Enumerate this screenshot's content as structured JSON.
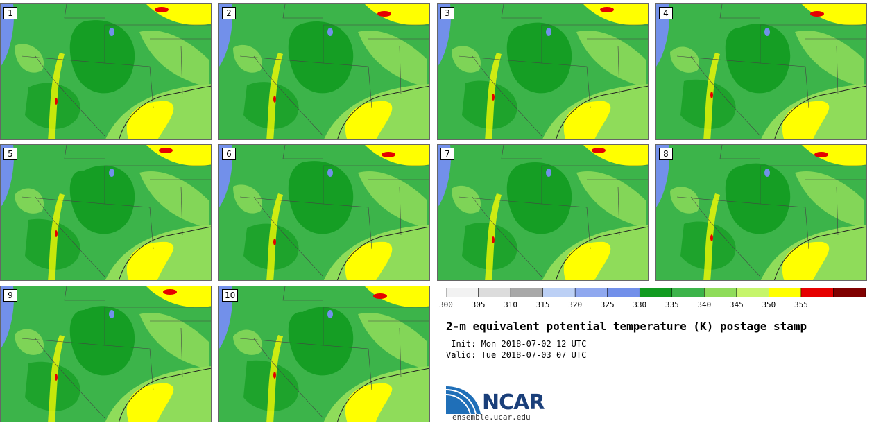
{
  "panels": [
    {
      "label": "1"
    },
    {
      "label": "2"
    },
    {
      "label": "3"
    },
    {
      "label": "4"
    },
    {
      "label": "5"
    },
    {
      "label": "6"
    },
    {
      "label": "7"
    },
    {
      "label": "8"
    },
    {
      "label": "9"
    },
    {
      "label": "10"
    }
  ],
  "colorbar": {
    "ticks": [
      "300",
      "305",
      "310",
      "315",
      "320",
      "325",
      "330",
      "335",
      "340",
      "345",
      "350",
      "355"
    ],
    "colors": [
      "#f2f2f2",
      "#dcdcdc",
      "#a8a8a8",
      "#bcd0f5",
      "#8fa8ef",
      "#7290ea",
      "#119b20",
      "#3cb44a",
      "#8fdc5a",
      "#c6f56b",
      "#ffff00",
      "#e60000",
      "#800000"
    ]
  },
  "title": "2-m equivalent potential temperature (K) postage stamp",
  "init": " Init: Mon 2018-07-02 12 UTC",
  "valid": "Valid: Tue 2018-07-03 07 UTC",
  "logo": {
    "text": "NCAR",
    "site": "ensemble.ucar.edu"
  }
}
